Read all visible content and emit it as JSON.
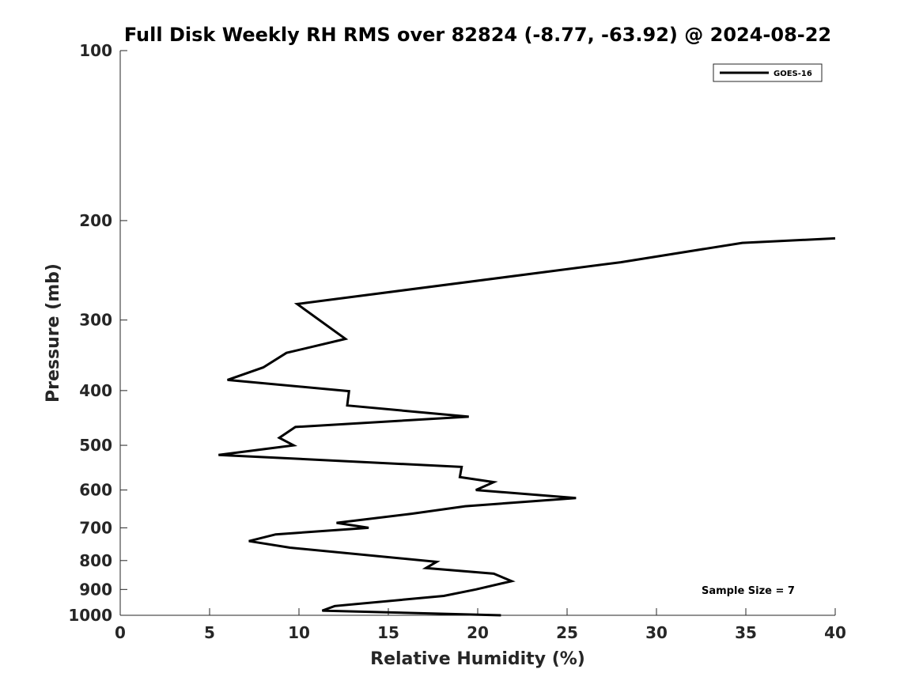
{
  "chart_data": {
    "type": "line",
    "title": "Full Disk Weekly RH RMS over 82824 (-8.77, -63.92) @ 2024-08-22",
    "xlabel": "Relative Humidity (%)",
    "ylabel": "Pressure (mb)",
    "xlim": [
      0,
      40
    ],
    "ylim": [
      100,
      1000
    ],
    "y_scale": "log",
    "y_reversed": true,
    "x_ticks": [
      0,
      5,
      10,
      15,
      20,
      25,
      30,
      35,
      40
    ],
    "y_ticks": [
      100,
      200,
      300,
      400,
      500,
      600,
      700,
      800,
      900,
      1000
    ],
    "grid": false,
    "legend_position": "top-right",
    "series": [
      {
        "name": "GOES-16",
        "color": "#000000",
        "points": [
          {
            "x": 40.0,
            "y": 215
          },
          {
            "x": 34.8,
            "y": 219
          },
          {
            "x": 28.0,
            "y": 237
          },
          {
            "x": 9.9,
            "y": 281
          },
          {
            "x": 12.6,
            "y": 324
          },
          {
            "x": 9.3,
            "y": 343
          },
          {
            "x": 8.0,
            "y": 364
          },
          {
            "x": 6.0,
            "y": 383
          },
          {
            "x": 12.8,
            "y": 401
          },
          {
            "x": 12.7,
            "y": 425
          },
          {
            "x": 19.5,
            "y": 445
          },
          {
            "x": 9.8,
            "y": 464
          },
          {
            "x": 8.9,
            "y": 485
          },
          {
            "x": 9.7,
            "y": 500
          },
          {
            "x": 5.5,
            "y": 520
          },
          {
            "x": 19.1,
            "y": 546
          },
          {
            "x": 19.0,
            "y": 569
          },
          {
            "x": 20.9,
            "y": 581
          },
          {
            "x": 19.9,
            "y": 600
          },
          {
            "x": 25.5,
            "y": 620
          },
          {
            "x": 19.3,
            "y": 641
          },
          {
            "x": 16.3,
            "y": 661
          },
          {
            "x": 12.1,
            "y": 686
          },
          {
            "x": 13.9,
            "y": 700
          },
          {
            "x": 8.7,
            "y": 719
          },
          {
            "x": 7.2,
            "y": 739
          },
          {
            "x": 9.5,
            "y": 759
          },
          {
            "x": 17.7,
            "y": 804
          },
          {
            "x": 17.1,
            "y": 825
          },
          {
            "x": 20.9,
            "y": 844
          },
          {
            "x": 21.9,
            "y": 870
          },
          {
            "x": 19.9,
            "y": 900
          },
          {
            "x": 18.1,
            "y": 924
          },
          {
            "x": 12.0,
            "y": 963
          },
          {
            "x": 11.3,
            "y": 981
          },
          {
            "x": 21.3,
            "y": 1000
          }
        ]
      }
    ],
    "annotations": [
      "Sample Size = 7"
    ]
  }
}
